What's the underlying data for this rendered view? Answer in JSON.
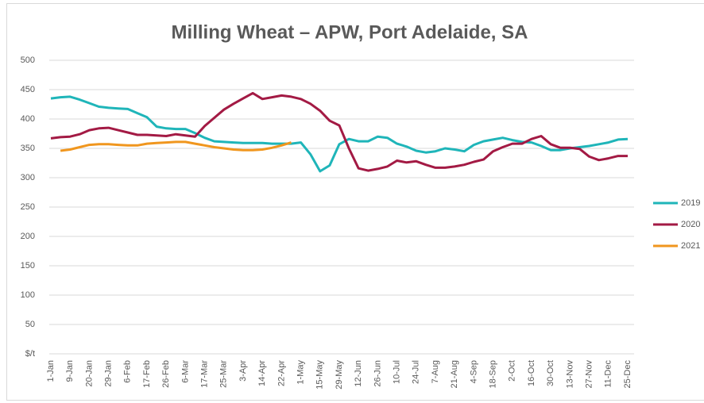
{
  "chart_data": {
    "type": "line",
    "title": "Milling Wheat – APW, Port Adelaide, SA",
    "categories": [
      "1-Jan",
      null,
      "9-Jan",
      null,
      "20-Jan",
      null,
      "29-Jan",
      null,
      "6-Feb",
      null,
      "17-Feb",
      null,
      "26-Feb",
      null,
      "6-Mar",
      null,
      "17-Mar",
      null,
      "25-Mar",
      null,
      "3-Apr",
      null,
      "14-Apr",
      null,
      "22-Apr",
      null,
      "1-May",
      null,
      "15-May",
      null,
      "29-May",
      null,
      "12-Jun",
      null,
      "26-Jun",
      null,
      "10-Jul",
      null,
      "24-Jul",
      null,
      "7-Aug",
      null,
      "21-Aug",
      null,
      "4-Sep",
      null,
      "18-Sep",
      null,
      "2-Oct",
      null,
      "16-Oct",
      null,
      "30-Oct",
      null,
      "13-Nov",
      null,
      "27-Nov",
      null,
      "11-Dec",
      null,
      "25-Dec"
    ],
    "series": [
      {
        "name": "2019",
        "color": "#1fb5b9",
        "values": [
          435,
          437,
          438,
          433,
          427,
          421,
          419,
          418,
          417,
          410,
          403,
          387,
          384,
          383,
          383,
          376,
          368,
          362,
          361,
          360,
          359,
          359,
          359,
          358,
          358,
          358,
          360,
          340,
          311,
          321,
          357,
          366,
          362,
          362,
          370,
          368,
          358,
          353,
          346,
          343,
          345,
          350,
          348,
          345,
          356,
          362,
          365,
          368,
          364,
          361,
          360,
          354,
          347,
          347,
          350,
          352,
          354,
          357,
          360,
          365,
          366
        ]
      },
      {
        "name": "2020",
        "color": "#a31a44",
        "values": [
          367,
          369,
          370,
          374,
          381,
          384,
          385,
          381,
          377,
          373,
          373,
          372,
          371,
          374,
          372,
          370,
          388,
          402,
          416,
          426,
          435,
          444,
          434,
          437,
          440,
          438,
          434,
          426,
          414,
          397,
          389,
          350,
          316,
          312,
          315,
          319,
          329,
          326,
          328,
          322,
          317,
          317,
          319,
          322,
          327,
          331,
          345,
          352,
          358,
          358,
          366,
          371,
          357,
          351,
          351,
          349,
          336,
          330,
          333,
          337,
          337
        ]
      },
      {
        "name": "2021",
        "color": "#f0961e",
        "values": [
          null,
          346,
          348,
          352,
          356,
          357,
          357,
          356,
          355,
          355,
          358,
          359,
          360,
          361,
          361,
          358,
          355,
          352,
          350,
          348,
          347,
          347,
          348,
          351,
          355,
          360,
          null,
          null,
          null,
          null,
          null,
          null,
          null,
          null,
          null,
          null,
          null,
          null,
          null,
          null,
          null,
          null,
          null,
          null,
          null,
          null,
          null,
          null,
          null,
          null,
          null,
          null,
          null,
          null,
          null,
          null,
          null,
          null,
          null,
          null,
          null
        ]
      }
    ],
    "ylim": [
      0,
      500
    ],
    "yticks": [
      {
        "value": 0,
        "label": "$/t"
      },
      50,
      100,
      150,
      200,
      250,
      300,
      350,
      400,
      450,
      500
    ],
    "grid": true,
    "legend": "right"
  }
}
